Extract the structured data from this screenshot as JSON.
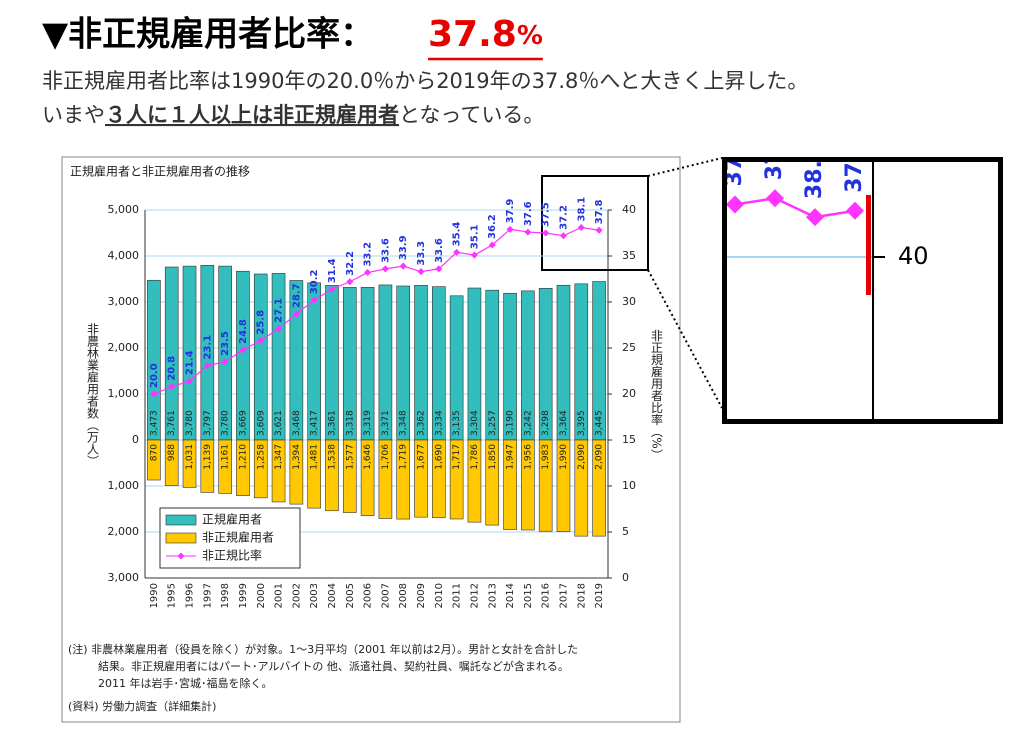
{
  "headline": {
    "prefix": "▼非正規雇用者比率：",
    "value": "37.8",
    "unit": "%"
  },
  "subtitle": {
    "line1": "非正規雇用者比率は1990年の20.0％から2019年の37.8％へと大きく上昇した。",
    "line2": [
      "いまや",
      "３人に１人以上は非正規雇用者",
      "となっている。"
    ]
  },
  "chart_data": {
    "type": "bar",
    "title": "正規雇用者と非正規雇用者の推移",
    "ylabel": "非農林業雇用者数（万人）",
    "y2label": "非正規雇用者比率（%）",
    "categories": [
      "1990",
      "1995",
      "1996",
      "1997",
      "1998",
      "1999",
      "2000",
      "2001",
      "2002",
      "2003",
      "2004",
      "2005",
      "2006",
      "2007",
      "2008",
      "2009",
      "2010",
      "2011",
      "2012",
      "2013",
      "2014",
      "2015",
      "2016",
      "2017",
      "2018",
      "2019"
    ],
    "series": [
      {
        "name": "正規雇用者",
        "color": "#33bdbd",
        "direction": "up",
        "values": [
          3473,
          3761,
          3780,
          3797,
          3780,
          3669,
          3609,
          3621,
          3468,
          3417,
          3361,
          3318,
          3319,
          3371,
          3348,
          3362,
          3334,
          3135,
          3304,
          3257,
          3190,
          3242,
          3298,
          3364,
          3395,
          3445
        ],
        "value_labels": [
          "3,473",
          "3,761",
          "3,780",
          "3,797",
          "3,780",
          "3,669",
          "3,609",
          "3,621",
          "3,468",
          "3,417",
          "3,361",
          "3,318",
          "3,319",
          "3,371",
          "3,348",
          "3,362",
          "3,334",
          "3,135",
          "3,304",
          "3,257",
          "3,190",
          "3,242",
          "3,298",
          "3,364",
          "3,395",
          "3,445"
        ]
      },
      {
        "name": "非正規雇用者",
        "color": "#ffc800",
        "direction": "down",
        "values": [
          870,
          988,
          1031,
          1139,
          1161,
          1210,
          1258,
          1347,
          1394,
          1481,
          1538,
          1577,
          1646,
          1706,
          1719,
          1677,
          1690,
          1717,
          1786,
          1850,
          1947,
          1956,
          1983,
          1990,
          2090,
          2090
        ],
        "value_labels": [
          "870",
          "988",
          "1,031",
          "1,139",
          "1,161",
          "1,210",
          "1,258",
          "1,347",
          "1,394",
          "1,481",
          "1,538",
          "1,577",
          "1,646",
          "1,706",
          "1,719",
          "1,677",
          "1,690",
          "1,717",
          "1,786",
          "1,850",
          "1,947",
          "1,956",
          "1,983",
          "1,990",
          "2,090",
          "2,090"
        ]
      },
      {
        "name": "非正規比率",
        "color": "#ff33ff",
        "type": "line",
        "axis": "y2",
        "values": [
          20.0,
          20.8,
          21.4,
          23.1,
          23.5,
          24.8,
          25.8,
          27.1,
          28.7,
          30.2,
          31.4,
          32.2,
          33.2,
          33.6,
          33.9,
          33.3,
          33.6,
          35.4,
          35.1,
          36.2,
          37.9,
          37.6,
          37.5,
          37.2,
          38.1,
          37.8
        ],
        "value_labels": [
          "20.0",
          "20.8",
          "21.4",
          "23.1",
          "23.5",
          "24.8",
          "25.8",
          "27.1",
          "28.7",
          "30.2",
          "31.4",
          "32.2",
          "33.2",
          "33.6",
          "33.9",
          "33.3",
          "33.6",
          "35.4",
          "35.1",
          "36.2",
          "37.9",
          "37.6",
          "37.5",
          "37.2",
          "38.1",
          "37.8"
        ]
      }
    ],
    "ylim": [
      -3000,
      5000
    ],
    "yticks": [
      {
        "value": 5000,
        "label": "5,000"
      },
      {
        "value": 4000,
        "label": "4,000"
      },
      {
        "value": 3000,
        "label": "3,000"
      },
      {
        "value": 2000,
        "label": "2,000"
      },
      {
        "value": 1000,
        "label": "1,000"
      },
      0,
      {
        "value": -1000,
        "label": "1,000"
      },
      {
        "value": -2000,
        "label": "2,000"
      },
      {
        "value": -3000,
        "label": "3,000"
      }
    ],
    "y2lim": [
      0,
      40
    ],
    "y2ticks": [
      0,
      5,
      10,
      15,
      20,
      25,
      30,
      35,
      40
    ],
    "grid": true,
    "legend": "lower left",
    "notes": [
      "(注) 非農林業雇用者（役員を除く）が対象。1～3月平均（2001 年以前は2月）。男計と女計を合計した",
      "結果。非正規雇用者にはパート･アルバイトの 他、派遣社員、契約社員、嘱託などが含まれる。",
      "2011 年は岩手･宮城･福島を除く。"
    ],
    "source": "(資料) 労働力調査（詳細集計)"
  }
}
